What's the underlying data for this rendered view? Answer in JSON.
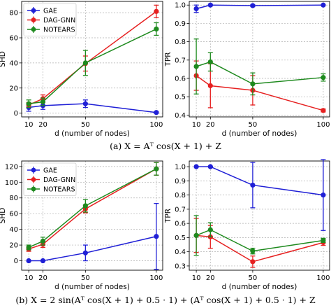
{
  "captions": [
    "(a) X = Aᵀ cos(X + 1) + Z",
    "(b) X = 2 sin(Aᵀ cos(X + 1) + 0.5 · 1) + (Aᵀ cos(X + 1) + 0.5 · 1) + Z"
  ],
  "chart_data": [
    {
      "type": "line",
      "panel": "a-left",
      "xlabel": "d (number of nodes)",
      "ylabel": "SHD",
      "x": [
        10,
        20,
        50,
        100
      ],
      "xticks": [
        10,
        20,
        50,
        100
      ],
      "ylim": [
        -3,
        89
      ],
      "yticks": [
        0,
        20,
        40,
        60,
        80
      ],
      "grid": true,
      "legend": "top-left",
      "series": [
        {
          "name": "GAE",
          "color": "#1f1fd6",
          "values": [
            4.5,
            6,
            7.5,
            0.5
          ],
          "errors": [
            3,
            3,
            3,
            0.5
          ]
        },
        {
          "name": "DAG-GNN",
          "color": "#e62020",
          "values": [
            6.5,
            11.5,
            39.5,
            81
          ],
          "errors": [
            2,
            3,
            6,
            5
          ]
        },
        {
          "name": "NOTEARS",
          "color": "#1e8a1e",
          "values": [
            7.5,
            9,
            40,
            67
          ],
          "errors": [
            3,
            3,
            10,
            5
          ]
        }
      ]
    },
    {
      "type": "line",
      "panel": "a-right",
      "xlabel": "d (number of nodes)",
      "ylabel": "TPR",
      "x": [
        10,
        20,
        50,
        100
      ],
      "xticks": [
        10,
        20,
        50,
        100
      ],
      "ylim": [
        0.39,
        1.02
      ],
      "yticks": [
        0.4,
        0.5,
        0.6,
        0.7,
        0.8,
        0.9,
        1.0
      ],
      "grid": true,
      "legend": "none",
      "series": [
        {
          "name": "GAE",
          "color": "#1f1fd6",
          "values": [
            0.98,
            1.0,
            0.997,
            1.0
          ],
          "errors": [
            0.02,
            0.005,
            0.005,
            0.002
          ]
        },
        {
          "name": "DAG-GNN",
          "color": "#e62020",
          "values": [
            0.615,
            0.56,
            0.535,
            0.425
          ],
          "errors": [
            0.08,
            0.12,
            0.08,
            0.008
          ]
        },
        {
          "name": "NOTEARS",
          "color": "#1e8a1e",
          "values": [
            0.665,
            0.69,
            0.57,
            0.605
          ],
          "errors": [
            0.15,
            0.05,
            0.06,
            0.02
          ]
        }
      ]
    },
    {
      "type": "line",
      "panel": "b-left",
      "xlabel": "d (number of nodes)",
      "ylabel": "SHD",
      "x": [
        10,
        20,
        50,
        100
      ],
      "xticks": [
        10,
        20,
        50,
        100
      ],
      "ylim": [
        -12,
        127
      ],
      "yticks": [
        0,
        20,
        40,
        60,
        80,
        100,
        120
      ],
      "grid": true,
      "legend": "top-left",
      "series": [
        {
          "name": "GAE",
          "color": "#1f1fd6",
          "values": [
            0,
            0,
            10,
            31
          ],
          "errors": [
            0.5,
            0.5,
            10,
            42
          ]
        },
        {
          "name": "DAG-GNN",
          "color": "#e62020",
          "values": [
            15,
            21,
            66,
            117
          ],
          "errors": [
            3,
            4,
            5,
            8
          ]
        },
        {
          "name": "NOTEARS",
          "color": "#1e8a1e",
          "values": [
            17,
            25,
            70,
            117
          ],
          "errors": [
            3,
            5,
            8,
            8
          ]
        }
      ]
    },
    {
      "type": "line",
      "panel": "b-right",
      "xlabel": "d (number of nodes)",
      "ylabel": "TPR",
      "x": [
        10,
        20,
        50,
        100
      ],
      "xticks": [
        10,
        20,
        50,
        100
      ],
      "ylim": [
        0.27,
        1.04
      ],
      "yticks": [
        0.3,
        0.4,
        0.5,
        0.6,
        0.7,
        0.8,
        0.9,
        1.0
      ],
      "grid": true,
      "legend": "none",
      "series": [
        {
          "name": "GAE",
          "color": "#1f1fd6",
          "values": [
            1.0,
            1.0,
            0.87,
            0.8
          ],
          "errors": [
            0.002,
            0.002,
            0.16,
            0.25
          ]
        },
        {
          "name": "DAG-GNN",
          "color": "#e62020",
          "values": [
            0.515,
            0.505,
            0.33,
            0.465
          ],
          "errors": [
            0.12,
            0.08,
            0.04,
            0.02
          ]
        },
        {
          "name": "NOTEARS",
          "color": "#1e8a1e",
          "values": [
            0.515,
            0.555,
            0.405,
            0.48
          ],
          "errors": [
            0.14,
            0.05,
            0.02,
            0.015
          ]
        }
      ]
    }
  ]
}
